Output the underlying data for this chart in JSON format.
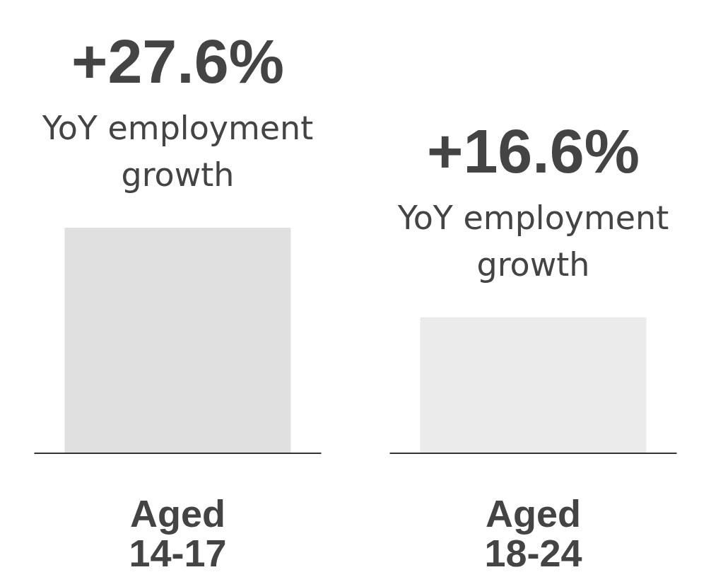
{
  "chart_data": {
    "type": "bar",
    "categories": [
      "Aged 14-17",
      "Aged 18-24"
    ],
    "values": [
      27.6,
      16.6
    ],
    "colors": [
      "#e0e0e0",
      "#ebebeb"
    ],
    "value_labels": [
      "+27.6%",
      "+16.6%"
    ],
    "annotations": [
      {
        "text": "YoY employment growth",
        "x": "Aged 14-17",
        "y": 27.6
      },
      {
        "text": "YoY employment growth",
        "x": "Aged 18-24",
        "y": 16.6
      }
    ]
  }
}
